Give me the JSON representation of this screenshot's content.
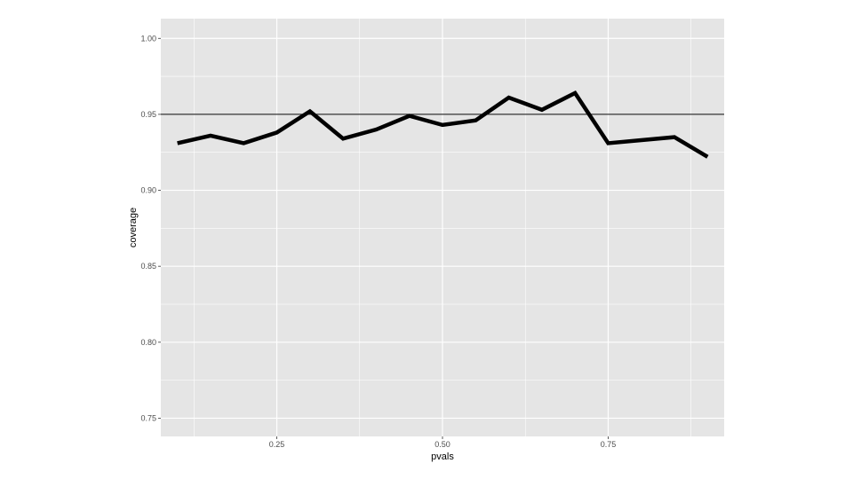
{
  "chart_data": {
    "type": "line",
    "title": "",
    "xlabel": "pvals",
    "ylabel": "coverage",
    "xlim": [
      0.075,
      0.925
    ],
    "ylim": [
      0.738,
      1.013
    ],
    "x_ticks": [
      {
        "value": 0.25,
        "label": "0.25"
      },
      {
        "value": 0.5,
        "label": "0.50"
      },
      {
        "value": 0.75,
        "label": "0.75"
      }
    ],
    "y_ticks": [
      {
        "value": 0.75,
        "label": "0.75"
      },
      {
        "value": 0.8,
        "label": "0.80"
      },
      {
        "value": 0.85,
        "label": "0.85"
      },
      {
        "value": 0.9,
        "label": "0.90"
      },
      {
        "value": 0.95,
        "label": "0.95"
      },
      {
        "value": 1.0,
        "label": "1.00"
      }
    ],
    "grid": true,
    "reference_line": {
      "orientation": "horizontal",
      "y": 0.95,
      "color": "#000000"
    },
    "series": [
      {
        "x": [
          0.1,
          0.15,
          0.2,
          0.25,
          0.3,
          0.35,
          0.4,
          0.45,
          0.5,
          0.55,
          0.6,
          0.65,
          0.7,
          0.75,
          0.8,
          0.85,
          0.9
        ],
        "values": [
          0.931,
          0.936,
          0.931,
          0.938,
          0.952,
          0.934,
          0.94,
          0.949,
          0.943,
          0.946,
          0.961,
          0.953,
          0.964,
          0.931,
          0.933,
          0.935,
          0.922
        ],
        "color": "#000000"
      }
    ],
    "colors": {
      "panel": "#e5e5e5",
      "grid": "#ffffff",
      "line": "#000000"
    }
  }
}
